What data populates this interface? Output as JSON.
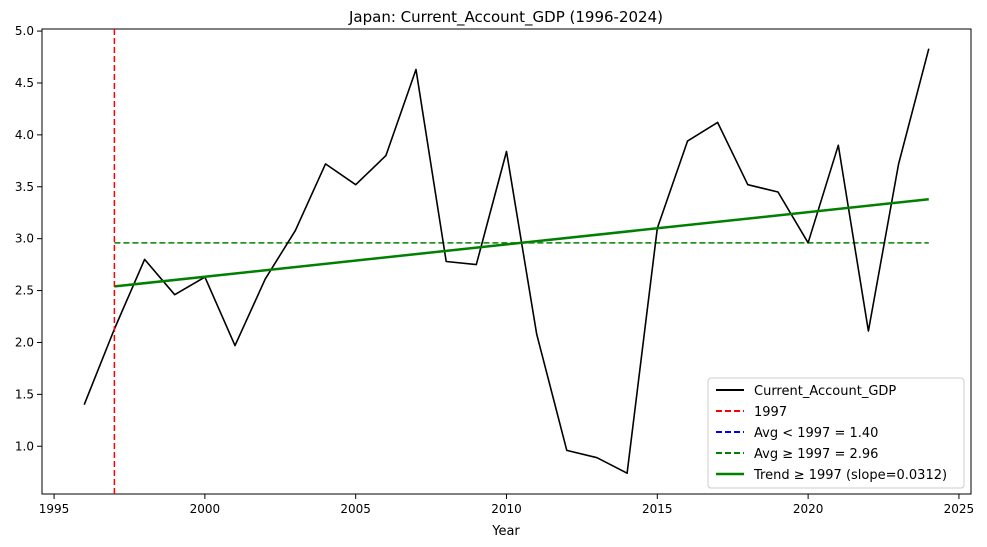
{
  "chart_data": {
    "type": "line",
    "title": "Japan: Current_Account_GDP (1996-2024)",
    "xlabel": "Year",
    "ylabel": "",
    "xlim": [
      1994.6,
      2025.4
    ],
    "ylim": [
      0.54,
      5.02
    ],
    "xticks": [
      1995,
      2000,
      2005,
      2010,
      2015,
      2020,
      2025
    ],
    "yticks": [
      1.0,
      1.5,
      2.0,
      2.5,
      3.0,
      3.5,
      4.0,
      4.5,
      5.0
    ],
    "x": [
      1996,
      1997,
      1998,
      1999,
      2000,
      2001,
      2002,
      2003,
      2004,
      2005,
      2006,
      2007,
      2008,
      2009,
      2010,
      2011,
      2012,
      2013,
      2014,
      2015,
      2016,
      2017,
      2018,
      2019,
      2020,
      2021,
      2022,
      2023,
      2024
    ],
    "series": [
      {
        "name": "Current_Account_GDP",
        "color": "#000000",
        "values": [
          1.4,
          2.13,
          2.8,
          2.46,
          2.63,
          1.97,
          2.61,
          3.08,
          3.72,
          3.52,
          3.8,
          4.63,
          2.78,
          2.75,
          3.84,
          2.08,
          0.96,
          0.89,
          0.74,
          3.1,
          3.94,
          4.12,
          3.52,
          3.45,
          2.96,
          3.9,
          2.11,
          3.72,
          4.83
        ]
      }
    ],
    "vline": {
      "x": 1997,
      "label": "1997",
      "color": "#ff0000"
    },
    "avg_before": {
      "label": "Avg < 1997 = 1.40",
      "value": 1.4,
      "color": "#0000ff"
    },
    "avg_after": {
      "label": "Avg ≥ 1997 = 2.96",
      "value": 2.96,
      "x_range": [
        1997,
        2024
      ],
      "color": "#008000"
    },
    "trend": {
      "label": "Trend ≥ 1997 (slope=0.0312)",
      "x_range": [
        1997,
        2024
      ],
      "y_start": 2.54,
      "y_end": 3.38,
      "slope": 0.0312,
      "color": "#008000"
    },
    "legend_position": "lower-right"
  }
}
